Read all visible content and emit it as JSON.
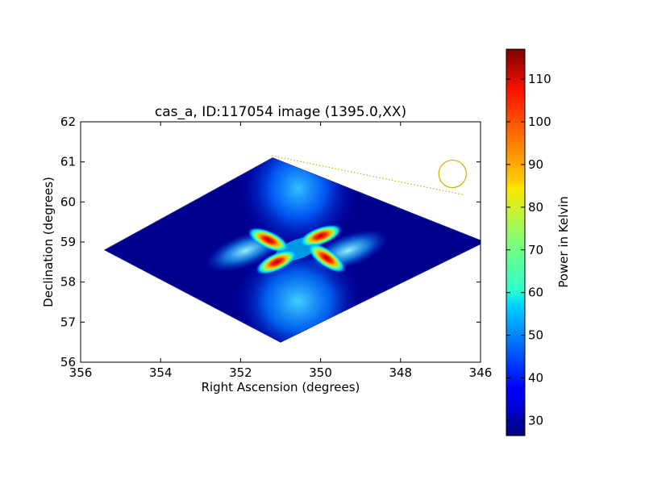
{
  "chart_data": {
    "type": "heatmap",
    "title": "cas_a, ID:117054 image (1395.0,XX)",
    "xlabel": "Right Ascension (degrees)",
    "ylabel": "Declination (degrees)",
    "xlim": [
      356,
      346
    ],
    "ylim": [
      56,
      62
    ],
    "x_ticks": [
      "356",
      "354",
      "352",
      "350",
      "348",
      "346"
    ],
    "y_ticks": [
      "56",
      "57",
      "58",
      "59",
      "60",
      "61",
      "62"
    ],
    "colorbar": {
      "label": "Power in Kelvin",
      "range": [
        26.5,
        117
      ],
      "ticks": [
        "30",
        "40",
        "50",
        "60",
        "70",
        "80",
        "90",
        "100",
        "110"
      ],
      "colormap": "jet"
    },
    "image_region": {
      "shape": "diamond",
      "vertices_data": [
        [
          355.4,
          58.8
        ],
        [
          351.2,
          61.1
        ],
        [
          345.9,
          59.0
        ],
        [
          351.0,
          56.5
        ]
      ],
      "background_value": 27
    },
    "emission_peaks": [
      {
        "ra": 351.3,
        "dec": 59.05,
        "value": 110
      },
      {
        "ra": 350.0,
        "dec": 59.15,
        "value": 112
      },
      {
        "ra": 351.1,
        "dec": 58.5,
        "value": 115
      },
      {
        "ra": 349.85,
        "dec": 58.6,
        "value": 112
      }
    ],
    "beam": {
      "ra": 346.7,
      "dec": 60.7,
      "color": "#c8b400"
    },
    "colors": {
      "axes": "#000000",
      "beam": "#c8b400",
      "low": "#00007f",
      "high": "#7f0000"
    }
  }
}
